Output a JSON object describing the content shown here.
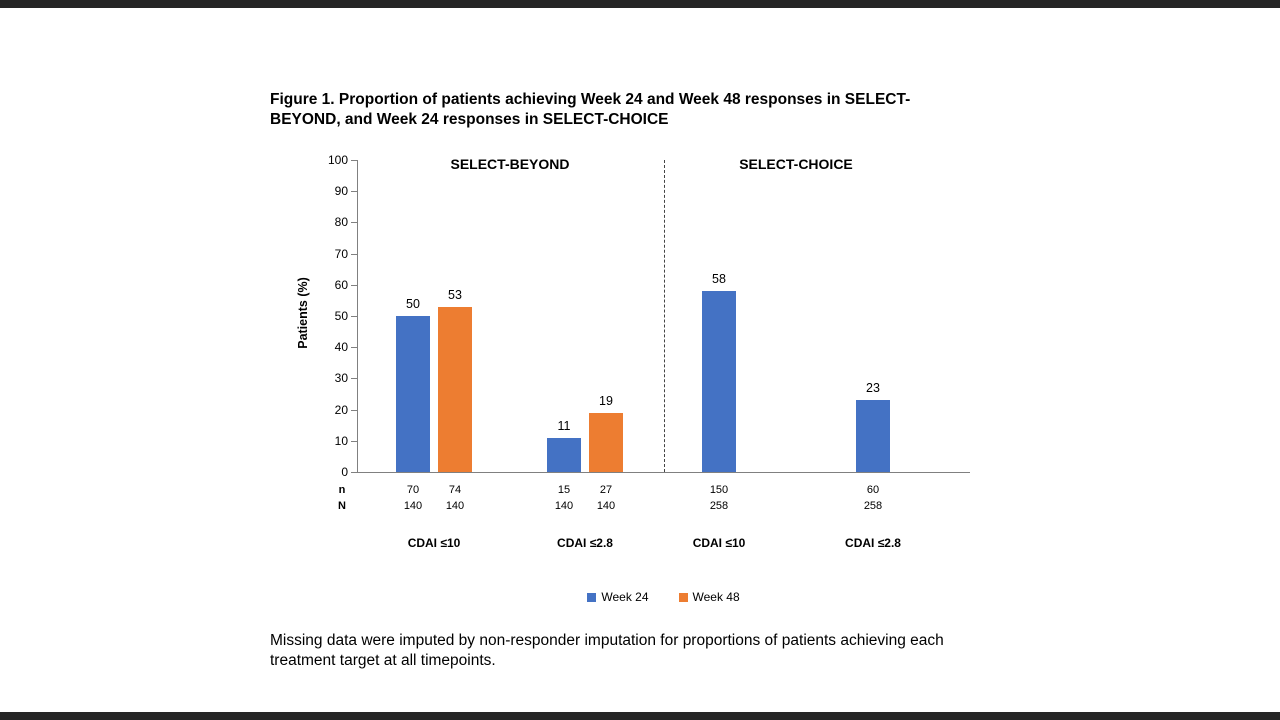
{
  "chart_data": {
    "type": "bar",
    "title": "Figure 1. Proportion of patients achieving Week 24 and Week 48 responses in SELECT-BEYOND, and Week 24 responses in SELECT-CHOICE",
    "ylabel": "Patients (%)",
    "ylim": [
      0,
      100
    ],
    "ytick_step": 10,
    "grid": false,
    "legend_position": "bottom",
    "panels": [
      {
        "label": "SELECT-BEYOND",
        "groups": [
          {
            "category": "CDAI ≤10",
            "bars": [
              {
                "series": "Week 24",
                "value": 50,
                "n": "70",
                "N": "140"
              },
              {
                "series": "Week 48",
                "value": 53,
                "n": "74",
                "N": "140"
              }
            ]
          },
          {
            "category": "CDAI ≤2.8",
            "bars": [
              {
                "series": "Week 24",
                "value": 11,
                "n": "15",
                "N": "140"
              },
              {
                "series": "Week 48",
                "value": 19,
                "n": "27",
                "N": "140"
              }
            ]
          }
        ]
      },
      {
        "label": "SELECT-CHOICE",
        "groups": [
          {
            "category": "CDAI ≤10",
            "bars": [
              {
                "series": "Week 24",
                "value": 58,
                "n": "150",
                "N": "258"
              }
            ]
          },
          {
            "category": "CDAI ≤2.8",
            "bars": [
              {
                "series": "Week 24",
                "value": 23,
                "n": "60",
                "N": "258"
              }
            ]
          }
        ]
      }
    ],
    "legend": [
      {
        "label": "Week 24",
        "color": "#4472C4"
      },
      {
        "label": "Week 48",
        "color": "#ED7D31"
      }
    ],
    "row_labels": {
      "n": "n",
      "N": "N"
    }
  },
  "footnote": "Missing data were imputed by non-responder imputation for proportions of patients achieving each treatment target at all timepoints."
}
